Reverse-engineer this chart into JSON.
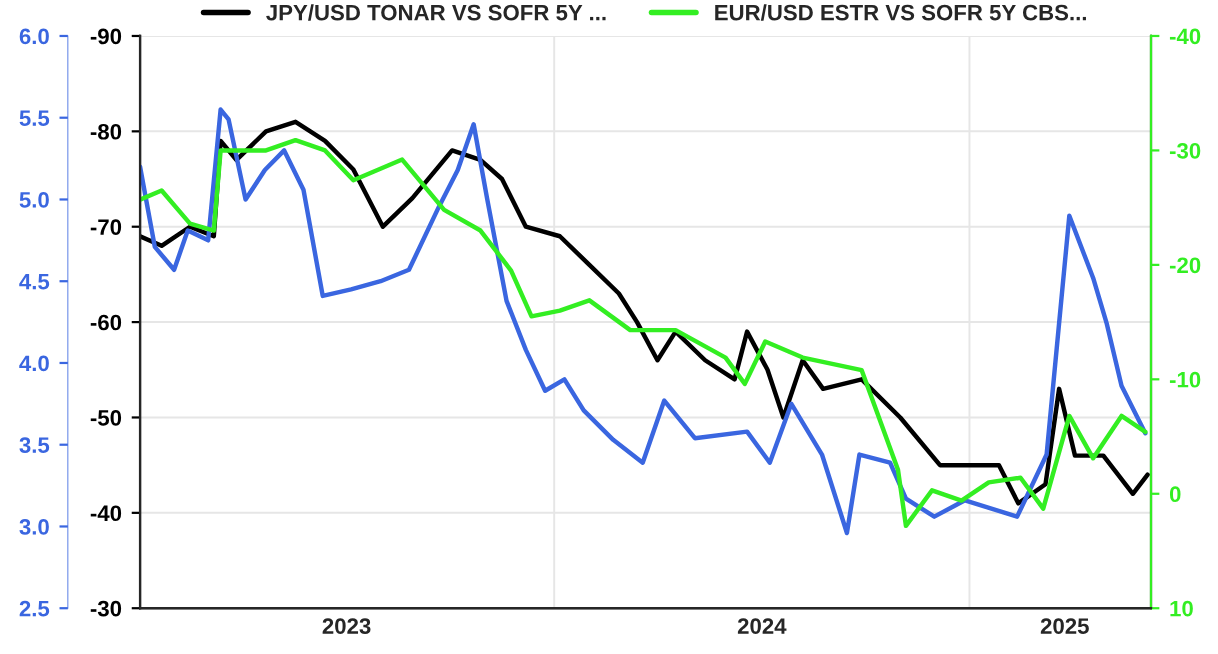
{
  "chart_data": {
    "type": "line",
    "legend": "top",
    "grid": true,
    "line_style": "solid",
    "marker": "none",
    "xlim": [
      "2023-01-01",
      "2025-06-10"
    ],
    "xticks": [
      {
        "value": "2024-01-01",
        "label": null
      },
      {
        "value": "2025-01-01",
        "label": null
      },
      {
        "value": "2023-07-02",
        "label": "2023"
      },
      {
        "value": "2024-07-02",
        "label": "2024"
      },
      {
        "value": "2025-03-26",
        "label": "2025"
      }
    ],
    "ylim": [
      -30,
      -90
    ],
    "yticks": [
      -90,
      -80,
      -70,
      -60,
      -50,
      -40,
      -30
    ],
    "y2lim": [
      2.5,
      6.0
    ],
    "y2ticks": [
      {
        "value": 2.5,
        "label": "2.5"
      },
      {
        "value": 3.0,
        "label": "3.0"
      },
      {
        "value": 3.5,
        "label": "3.5"
      },
      {
        "value": 4.0,
        "label": "4.0"
      },
      {
        "value": 4.5,
        "label": "4.5"
      },
      {
        "value": 5.0,
        "label": "5.0"
      },
      {
        "value": 5.5,
        "label": "5.5"
      },
      {
        "value": 6.0,
        "label": "6.0"
      }
    ],
    "y3lim": [
      10,
      -40
    ],
    "y3ticks": [
      -40,
      -30,
      -20,
      -10,
      0,
      10
    ],
    "series": [
      {
        "name": "JPY/USD TONAR VS SOFR 5Y ...",
        "color": "#000000",
        "axis": "y",
        "x": [
          "2023-01-01",
          "2023-01-20",
          "2023-02-14",
          "2023-03-07",
          "2023-03-13",
          "2023-03-27",
          "2023-04-22",
          "2023-05-18",
          "2023-06-13",
          "2023-07-08",
          "2023-08-03",
          "2023-08-29",
          "2023-10-03",
          "2023-10-28",
          "2023-11-16",
          "2023-12-07",
          "2024-01-06",
          "2024-02-01",
          "2024-02-27",
          "2024-03-14",
          "2024-04-01",
          "2024-04-17",
          "2024-05-13",
          "2024-06-08",
          "2024-06-19",
          "2024-07-07",
          "2024-07-21",
          "2024-08-07",
          "2024-08-25",
          "2024-09-28",
          "2024-11-01",
          "2024-12-06",
          "2025-01-01",
          "2025-01-27",
          "2025-02-13",
          "2025-03-09",
          "2025-03-21",
          "2025-04-04",
          "2025-04-29",
          "2025-05-25",
          "2025-06-07"
        ],
        "values": [
          -69,
          -68,
          -70,
          -69,
          -79,
          -77,
          -80,
          -81,
          -79,
          -76,
          -70,
          -73,
          -78,
          -77,
          -75,
          -70,
          -69,
          -66,
          -63,
          -60,
          -56,
          -59,
          -56,
          -54,
          -59,
          -55,
          -50,
          -56,
          -53,
          -54,
          -50,
          -45,
          -45,
          -45,
          -41,
          -43,
          -53,
          -46,
          -46,
          -42,
          -44
        ]
      },
      {
        "name": "EUR/USD ESTR VS SOFR 5Y CBS...",
        "color": "#33ee22",
        "axis": "y3",
        "x": [
          "2023-01-01",
          "2023-01-20",
          "2023-02-14",
          "2023-03-07",
          "2023-03-13",
          "2023-04-22",
          "2023-05-18",
          "2023-06-13",
          "2023-07-08",
          "2023-08-20",
          "2023-09-26",
          "2023-10-28",
          "2023-11-24",
          "2023-12-12",
          "2024-01-06",
          "2024-02-01",
          "2024-03-08",
          "2024-04-17",
          "2024-05-31",
          "2024-06-17",
          "2024-07-05",
          "2024-08-07",
          "2024-09-28",
          "2024-10-30",
          "2024-11-06",
          "2024-11-29",
          "2024-12-25",
          "2025-01-18",
          "2025-02-15",
          "2025-03-07",
          "2025-03-30",
          "2025-04-20",
          "2025-05-15",
          "2025-06-05"
        ],
        "values": [
          -25.7,
          -26.5,
          -23.6,
          -23,
          -30,
          -30,
          -30.9,
          -30,
          -27.4,
          -29.2,
          -24.8,
          -23,
          -19.5,
          -15.5,
          -16,
          -16.9,
          -14.3,
          -14.3,
          -11.9,
          -9.6,
          -13.3,
          -11.9,
          -10.8,
          -2.1,
          2.8,
          -0.3,
          0.6,
          -1,
          -1.4,
          1.3,
          -6.8,
          -3.1,
          -6.8,
          -5.4
        ]
      },
      {
        "color": "#3a66e0",
        "axis": "y2",
        "x": [
          "2023-01-01",
          "2023-01-14",
          "2023-01-31",
          "2023-02-12",
          "2023-03-02",
          "2023-03-13",
          "2023-03-20",
          "2023-04-04",
          "2023-04-21",
          "2023-05-08",
          "2023-05-25",
          "2023-06-11",
          "2023-07-06",
          "2023-08-01",
          "2023-08-26",
          "2023-09-21",
          "2023-10-08",
          "2023-10-22",
          "2023-11-03",
          "2023-11-20",
          "2023-12-07",
          "2023-12-24",
          "2024-01-10",
          "2024-01-27",
          "2024-02-22",
          "2024-03-19",
          "2024-04-07",
          "2024-05-04",
          "2024-06-19",
          "2024-07-09",
          "2024-07-28",
          "2024-08-24",
          "2024-09-15",
          "2024-09-26",
          "2024-10-23",
          "2024-11-06",
          "2024-12-01",
          "2024-12-28",
          "2025-02-12",
          "2025-03-10",
          "2025-03-30",
          "2025-04-20",
          "2025-05-02",
          "2025-05-15",
          "2025-06-05"
        ],
        "values": [
          5.2,
          4.71,
          4.57,
          4.81,
          4.75,
          5.55,
          5.49,
          5.0,
          5.18,
          5.3,
          5.06,
          4.41,
          4.45,
          4.5,
          4.57,
          4.95,
          5.18,
          5.46,
          5.0,
          4.38,
          4.08,
          3.83,
          3.9,
          3.71,
          3.53,
          3.39,
          3.77,
          3.54,
          3.58,
          3.39,
          3.75,
          3.44,
          2.96,
          3.44,
          3.39,
          3.17,
          3.06,
          3.16,
          3.06,
          3.44,
          4.9,
          4.52,
          4.24,
          3.86,
          3.57
        ]
      }
    ]
  }
}
